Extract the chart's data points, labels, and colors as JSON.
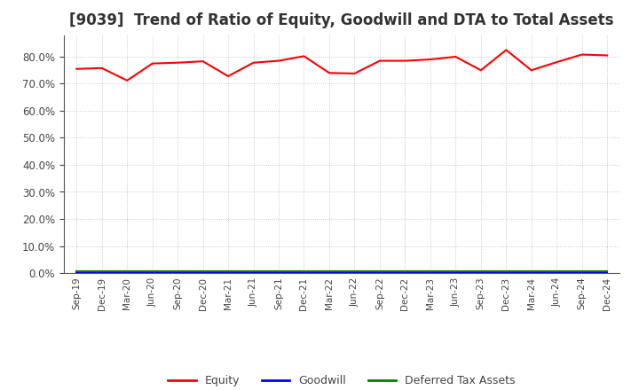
{
  "title": "[9039]  Trend of Ratio of Equity, Goodwill and DTA to Total Assets",
  "x_labels": [
    "Sep-19",
    "Dec-19",
    "Mar-20",
    "Jun-20",
    "Sep-20",
    "Dec-20",
    "Mar-21",
    "Jun-21",
    "Sep-21",
    "Dec-21",
    "Mar-22",
    "Jun-22",
    "Sep-22",
    "Dec-22",
    "Mar-23",
    "Jun-23",
    "Sep-23",
    "Dec-23",
    "Mar-24",
    "Jun-24",
    "Sep-24",
    "Dec-24"
  ],
  "equity": [
    75.5,
    75.8,
    71.2,
    77.5,
    77.8,
    78.3,
    72.8,
    77.8,
    78.5,
    80.2,
    74.0,
    73.8,
    78.5,
    78.5,
    79.0,
    80.0,
    75.0,
    82.5,
    75.0,
    78.0,
    80.8,
    80.5
  ],
  "goodwill": [
    0.3,
    0.3,
    0.3,
    0.3,
    0.3,
    0.3,
    0.3,
    0.3,
    0.3,
    0.3,
    0.3,
    0.3,
    0.3,
    0.3,
    0.3,
    0.3,
    0.3,
    0.3,
    0.3,
    0.3,
    0.3,
    0.3
  ],
  "dta": [
    0.5,
    0.5,
    0.5,
    0.5,
    0.5,
    0.5,
    0.5,
    0.5,
    0.5,
    0.5,
    0.5,
    0.5,
    0.5,
    0.5,
    0.5,
    0.5,
    0.5,
    0.5,
    0.5,
    0.5,
    0.5,
    0.5
  ],
  "equity_color": "#ff0000",
  "goodwill_color": "#0000ff",
  "dta_color": "#008000",
  "ylim": [
    0,
    88
  ],
  "yticks": [
    0,
    10,
    20,
    30,
    40,
    50,
    60,
    70,
    80
  ],
  "background_color": "#ffffff",
  "plot_bg_color": "#ffffff",
  "grid_color": "#bbbbbb",
  "title_fontsize": 12,
  "title_color": "#333333",
  "tick_color": "#444444",
  "legend_labels": [
    "Equity",
    "Goodwill",
    "Deferred Tax Assets"
  ]
}
